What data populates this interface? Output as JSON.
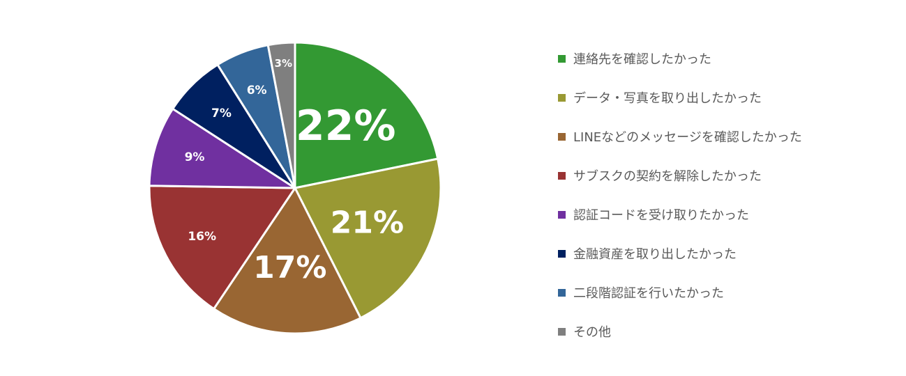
{
  "chart_data": {
    "type": "pie",
    "slices": [
      {
        "label": "連絡先を確認したかった",
        "value": 22,
        "value_label": "22%",
        "color": "#339933"
      },
      {
        "label": "データ・写真を取り出したかった",
        "value": 21,
        "value_label": "21%",
        "color": "#999933"
      },
      {
        "label": "LINEなどのメッセージを確認したかった",
        "value": 17,
        "value_label": "17%",
        "color": "#996633"
      },
      {
        "label": "サブスクの契約を解除したかった",
        "value": 16,
        "value_label": "16%",
        "color": "#993333"
      },
      {
        "label": "認証コードを受け取りたかった",
        "value": 9,
        "value_label": "9%",
        "color": "#7030a0"
      },
      {
        "label": "金融資産を取り出したかった",
        "value": 7,
        "value_label": "7%",
        "color": "#002060"
      },
      {
        "label": "二段階認証を行いたかった",
        "value": 6,
        "value_label": "6%",
        "color": "#336699"
      },
      {
        "label": "その他",
        "value": 3,
        "value_label": "3%",
        "color": "#7f7f7f"
      }
    ],
    "start_angle": "12 o'clock",
    "direction": "clockwise",
    "legend_position": "right"
  }
}
